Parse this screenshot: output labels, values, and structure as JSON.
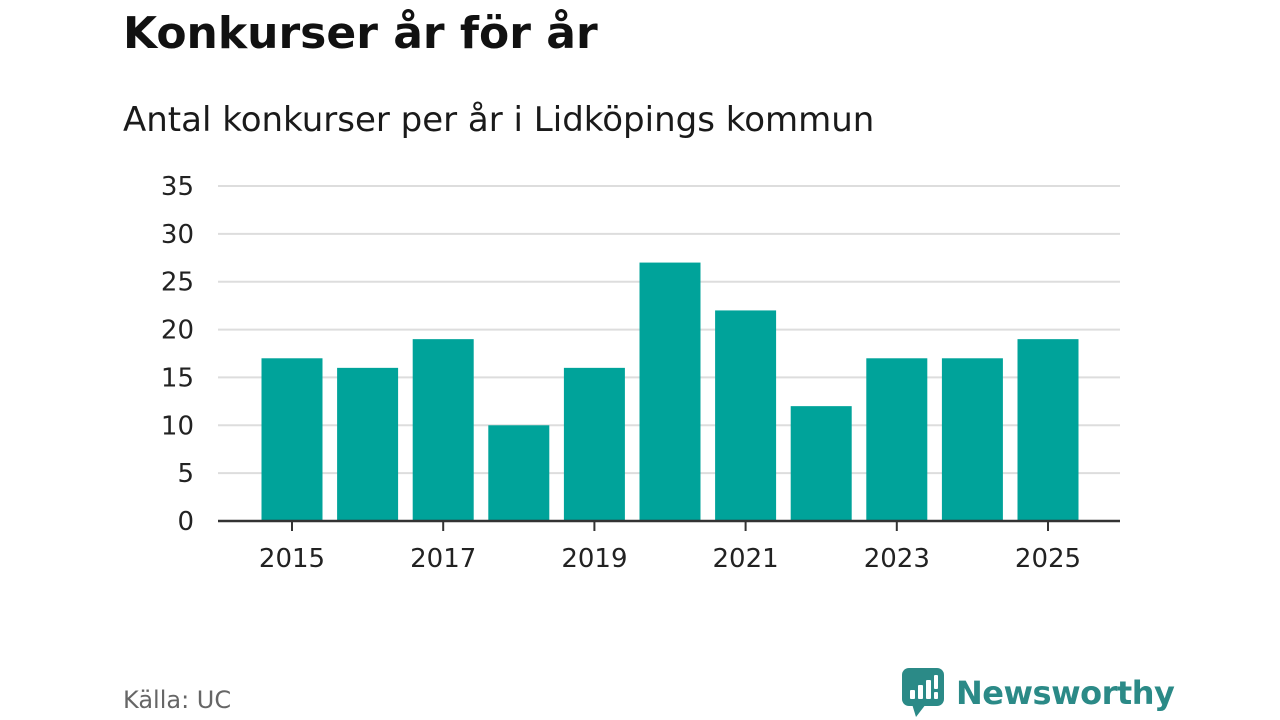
{
  "header": {
    "title": "Konkurser år för år",
    "subtitle": "Antal konkurser per år i Lidköpings kommun"
  },
  "footer": {
    "source": "Källa: UC",
    "brand": "Newsworthy"
  },
  "colors": {
    "bar": "#00a39a",
    "grid": "#dddddd",
    "axis": "#333333",
    "brand": "#2b8a87"
  },
  "chart_data": {
    "type": "bar",
    "title": "Konkurser år för år",
    "subtitle": "Antal konkurser per år i Lidköpings kommun",
    "xlabel": "",
    "ylabel": "",
    "categories": [
      "2015",
      "2016",
      "2017",
      "2018",
      "2019",
      "2020",
      "2021",
      "2022",
      "2023",
      "2024",
      "2025"
    ],
    "values": [
      17,
      16,
      19,
      10,
      16,
      27,
      22,
      12,
      17,
      17,
      19
    ],
    "x_tick_labels": [
      "2015",
      "2017",
      "2019",
      "2021",
      "2023",
      "2025"
    ],
    "y_ticks": [
      0,
      5,
      10,
      15,
      20,
      25,
      30,
      35
    ],
    "ylim": [
      0,
      35
    ],
    "grid": true,
    "legend": "none"
  }
}
